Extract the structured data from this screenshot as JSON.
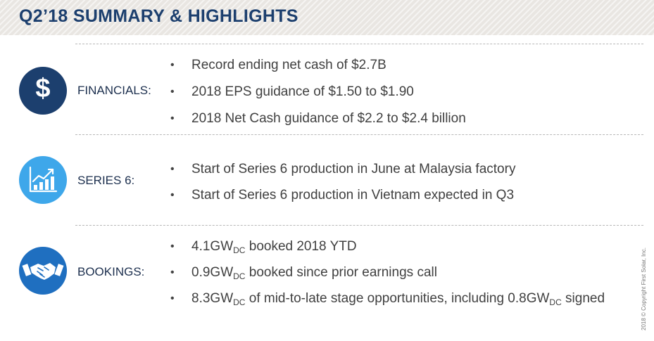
{
  "header": {
    "title": "Q2’18 SUMMARY & HIGHLIGHTS"
  },
  "colors": {
    "navy": "#1c3f6e",
    "lightblue": "#3ea7ea",
    "medblue": "#1f6fc0",
    "header_bg": "#e9e6e2"
  },
  "sections": [
    {
      "label": "FINANCIALS:",
      "icon": "dollar-icon",
      "symbol": "$",
      "bullets": [
        "Record ending net cash of $2.7B",
        "2018 EPS guidance of $1.50 to $1.90",
        "2018 Net Cash guidance of $2.2 to $2.4 billion"
      ]
    },
    {
      "label": "SERIES 6:",
      "icon": "growth-chart-icon",
      "bullets": [
        "Start of Series 6 production in June at Malaysia factory",
        "Start of Series 6 production in Vietnam expected in Q3"
      ]
    },
    {
      "label": "BOOKINGS:",
      "icon": "handshake-icon",
      "bullets": [
        {
          "parts": [
            "4.1GW",
            "DC",
            " booked 2018 YTD"
          ]
        },
        {
          "parts": [
            "0.9GW",
            "DC",
            " booked since prior earnings call"
          ]
        },
        {
          "parts": [
            "8.3GW",
            "DC",
            " of mid-to-late stage opportunities, including 0.8GW",
            "DC",
            " signed"
          ]
        }
      ]
    }
  ],
  "bullet_char": "•",
  "copyright": "2018 © Copyright First Solar, Inc."
}
